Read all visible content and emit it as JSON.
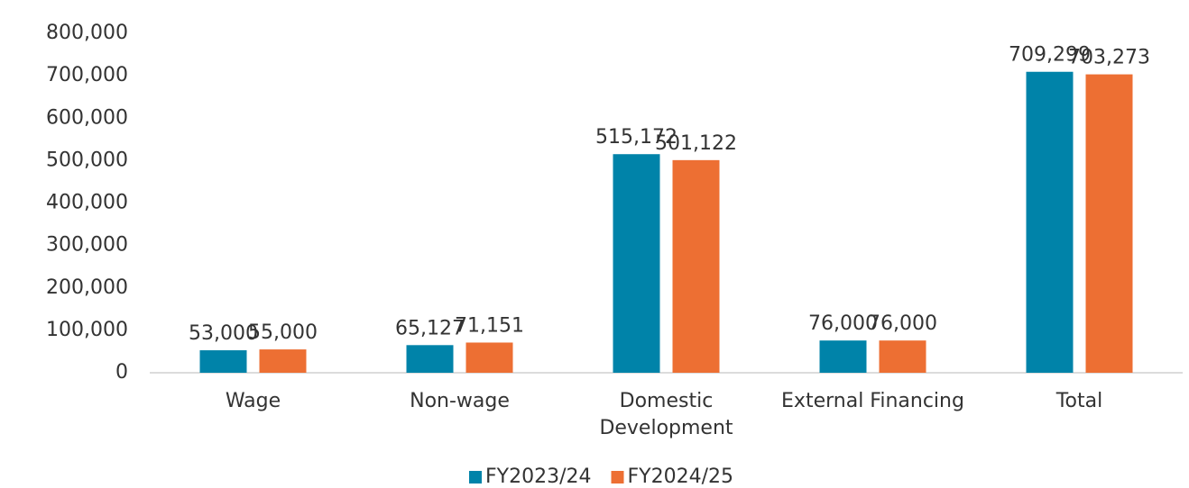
{
  "chart_data": {
    "type": "bar",
    "categories": [
      "Wage",
      "Non-wage",
      "Domestic Development",
      "External Financing",
      "Total"
    ],
    "series": [
      {
        "name": "FY2023/24",
        "color": "#0083a9",
        "values": [
          53000,
          65127,
          515172,
          76000,
          709299
        ],
        "value_labels": [
          "53,000",
          "65,127",
          "515,172",
          "76,000",
          "709,299"
        ]
      },
      {
        "name": "FY2024/25",
        "color": "#ed6f33",
        "values": [
          55000,
          71151,
          501122,
          76000,
          703273
        ],
        "value_labels": [
          "55,000",
          "71,151",
          "501,122",
          "76,000",
          "703,273"
        ]
      }
    ],
    "ylim": [
      0,
      800000
    ],
    "yticks": [
      0,
      {
        "value": 100000,
        "label": "100,000"
      },
      {
        "value": 200000,
        "label": "200,000"
      },
      {
        "value": 300000,
        "label": "300,000"
      },
      {
        "value": 400000,
        "label": "400,000"
      },
      {
        "value": 500000,
        "label": "500,000"
      },
      {
        "value": 600000,
        "label": "600,000"
      },
      {
        "value": 700000,
        "label": "700,000"
      },
      {
        "value": 800000,
        "label": "800,000"
      }
    ],
    "grid": false,
    "legend": "bottom"
  }
}
